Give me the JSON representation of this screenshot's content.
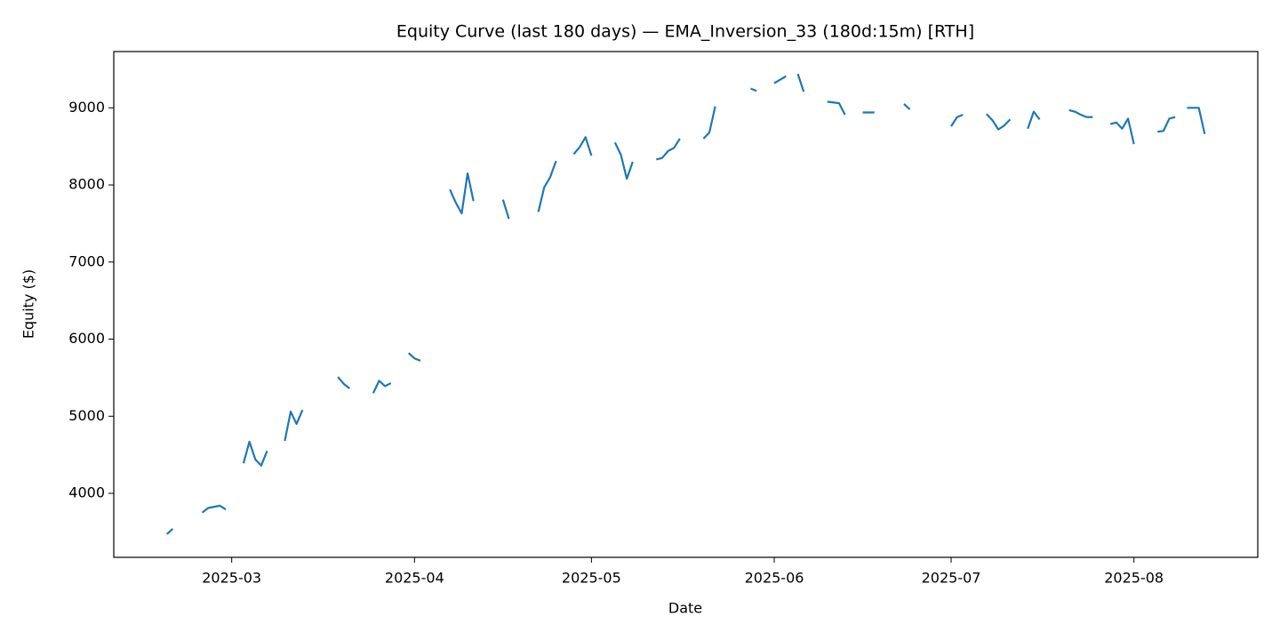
{
  "chart_data": {
    "type": "line",
    "title": "Equity Curve (last 180 days) — EMA_Inversion_33 (180d:15m) [RTH]",
    "xlabel": "Date",
    "ylabel": "Equity ($)",
    "color": "#1f77b4",
    "x": [
      "2025-02-18",
      "2025-02-19",
      "2025-02-21",
      "2025-02-24",
      "2025-02-25",
      "2025-02-27",
      "2025-02-28",
      "2025-03-01",
      "2025-03-03",
      "2025-03-04",
      "2025-03-05",
      "2025-03-06",
      "2025-03-07",
      "2025-03-08",
      "2025-03-10",
      "2025-03-11",
      "2025-03-12",
      "2025-03-13",
      "2025-03-14",
      "2025-03-19",
      "2025-03-20",
      "2025-03-21",
      "2025-03-22",
      "2025-03-25",
      "2025-03-26",
      "2025-03-27",
      "2025-03-28",
      "2025-03-29",
      "2025-03-31",
      "2025-04-01",
      "2025-04-02",
      "2025-04-03",
      "2025-04-07",
      "2025-04-08",
      "2025-04-09",
      "2025-04-10",
      "2025-04-11",
      "2025-04-12",
      "2025-04-16",
      "2025-04-17",
      "2025-04-18",
      "2025-04-22",
      "2025-04-23",
      "2025-04-24",
      "2025-04-25",
      "2025-04-26",
      "2025-04-28",
      "2025-04-29",
      "2025-04-30",
      "2025-05-01",
      "2025-05-02",
      "2025-05-05",
      "2025-05-06",
      "2025-05-07",
      "2025-05-08",
      "2025-05-09",
      "2025-05-12",
      "2025-05-13",
      "2025-05-14",
      "2025-05-15",
      "2025-05-16",
      "2025-05-17",
      "2025-05-20",
      "2025-05-21",
      "2025-05-22",
      "2025-05-23",
      "2025-05-28",
      "2025-05-29",
      "2025-05-30",
      "2025-06-01",
      "2025-06-03",
      "2025-06-04",
      "2025-06-05",
      "2025-06-06",
      "2025-06-07",
      "2025-06-10",
      "2025-06-12",
      "2025-06-13",
      "2025-06-14",
      "2025-06-16",
      "2025-06-18",
      "2025-06-19",
      "2025-06-23",
      "2025-06-24",
      "2025-06-26",
      "2025-07-01",
      "2025-07-02",
      "2025-07-03",
      "2025-07-04",
      "2025-07-07",
      "2025-07-08",
      "2025-07-09",
      "2025-07-10",
      "2025-07-11",
      "2025-07-12",
      "2025-07-14",
      "2025-07-15",
      "2025-07-16",
      "2025-07-17",
      "2025-07-21",
      "2025-07-22",
      "2025-07-23",
      "2025-07-24",
      "2025-07-25",
      "2025-07-26",
      "2025-07-28",
      "2025-07-29",
      "2025-07-30",
      "2025-07-31",
      "2025-08-01",
      "2025-08-02",
      "2025-08-05",
      "2025-08-06",
      "2025-08-07",
      "2025-08-08",
      "2025-08-09",
      "2025-08-10",
      "2025-08-12",
      "2025-08-13"
    ],
    "values": [
      3470,
      3540,
      null,
      3750,
      3810,
      3840,
      3790,
      null,
      4390,
      4670,
      4440,
      4360,
      4550,
      null,
      4680,
      5060,
      4900,
      5080,
      null,
      5510,
      5420,
      5360,
      null,
      5300,
      5460,
      5390,
      5430,
      null,
      5820,
      5750,
      5720,
      null,
      7940,
      7770,
      7630,
      8150,
      7790,
      null,
      7810,
      7560,
      null,
      7650,
      7970,
      8100,
      8310,
      null,
      8400,
      8490,
      8620,
      8380,
      null,
      8550,
      8390,
      8080,
      8300,
      null,
      8330,
      8350,
      8440,
      8480,
      8600,
      null,
      8600,
      8680,
      9020,
      null,
      9250,
      9220,
      null,
      9320,
      9410,
      null,
      9440,
      9210,
      null,
      9080,
      9060,
      8910,
      null,
      8940,
      8940,
      null,
      9050,
      8980,
      null,
      8760,
      8880,
      8910,
      null,
      8920,
      8840,
      8720,
      8770,
      8850,
      null,
      8730,
      8950,
      8850,
      null,
      8970,
      8950,
      8910,
      8880,
      8880,
      null,
      8790,
      8810,
      8730,
      8860,
      8530,
      null,
      8690,
      8700,
      8860,
      8880,
      null,
      9000,
      9000,
      8660
    ],
    "xlim": [
      "2025-02-09",
      "2025-08-22"
    ],
    "xticks": [
      {
        "value": "2025-03-01",
        "label": "2025-03"
      },
      {
        "value": "2025-04-01",
        "label": "2025-04"
      },
      {
        "value": "2025-05-01",
        "label": "2025-05"
      },
      {
        "value": "2025-06-01",
        "label": "2025-06"
      },
      {
        "value": "2025-07-01",
        "label": "2025-07"
      },
      {
        "value": "2025-08-01",
        "label": "2025-08"
      }
    ],
    "ylim": [
      3170,
      9730
    ],
    "yticks": [
      4000,
      5000,
      6000,
      7000,
      8000,
      9000
    ],
    "grid": false
  }
}
